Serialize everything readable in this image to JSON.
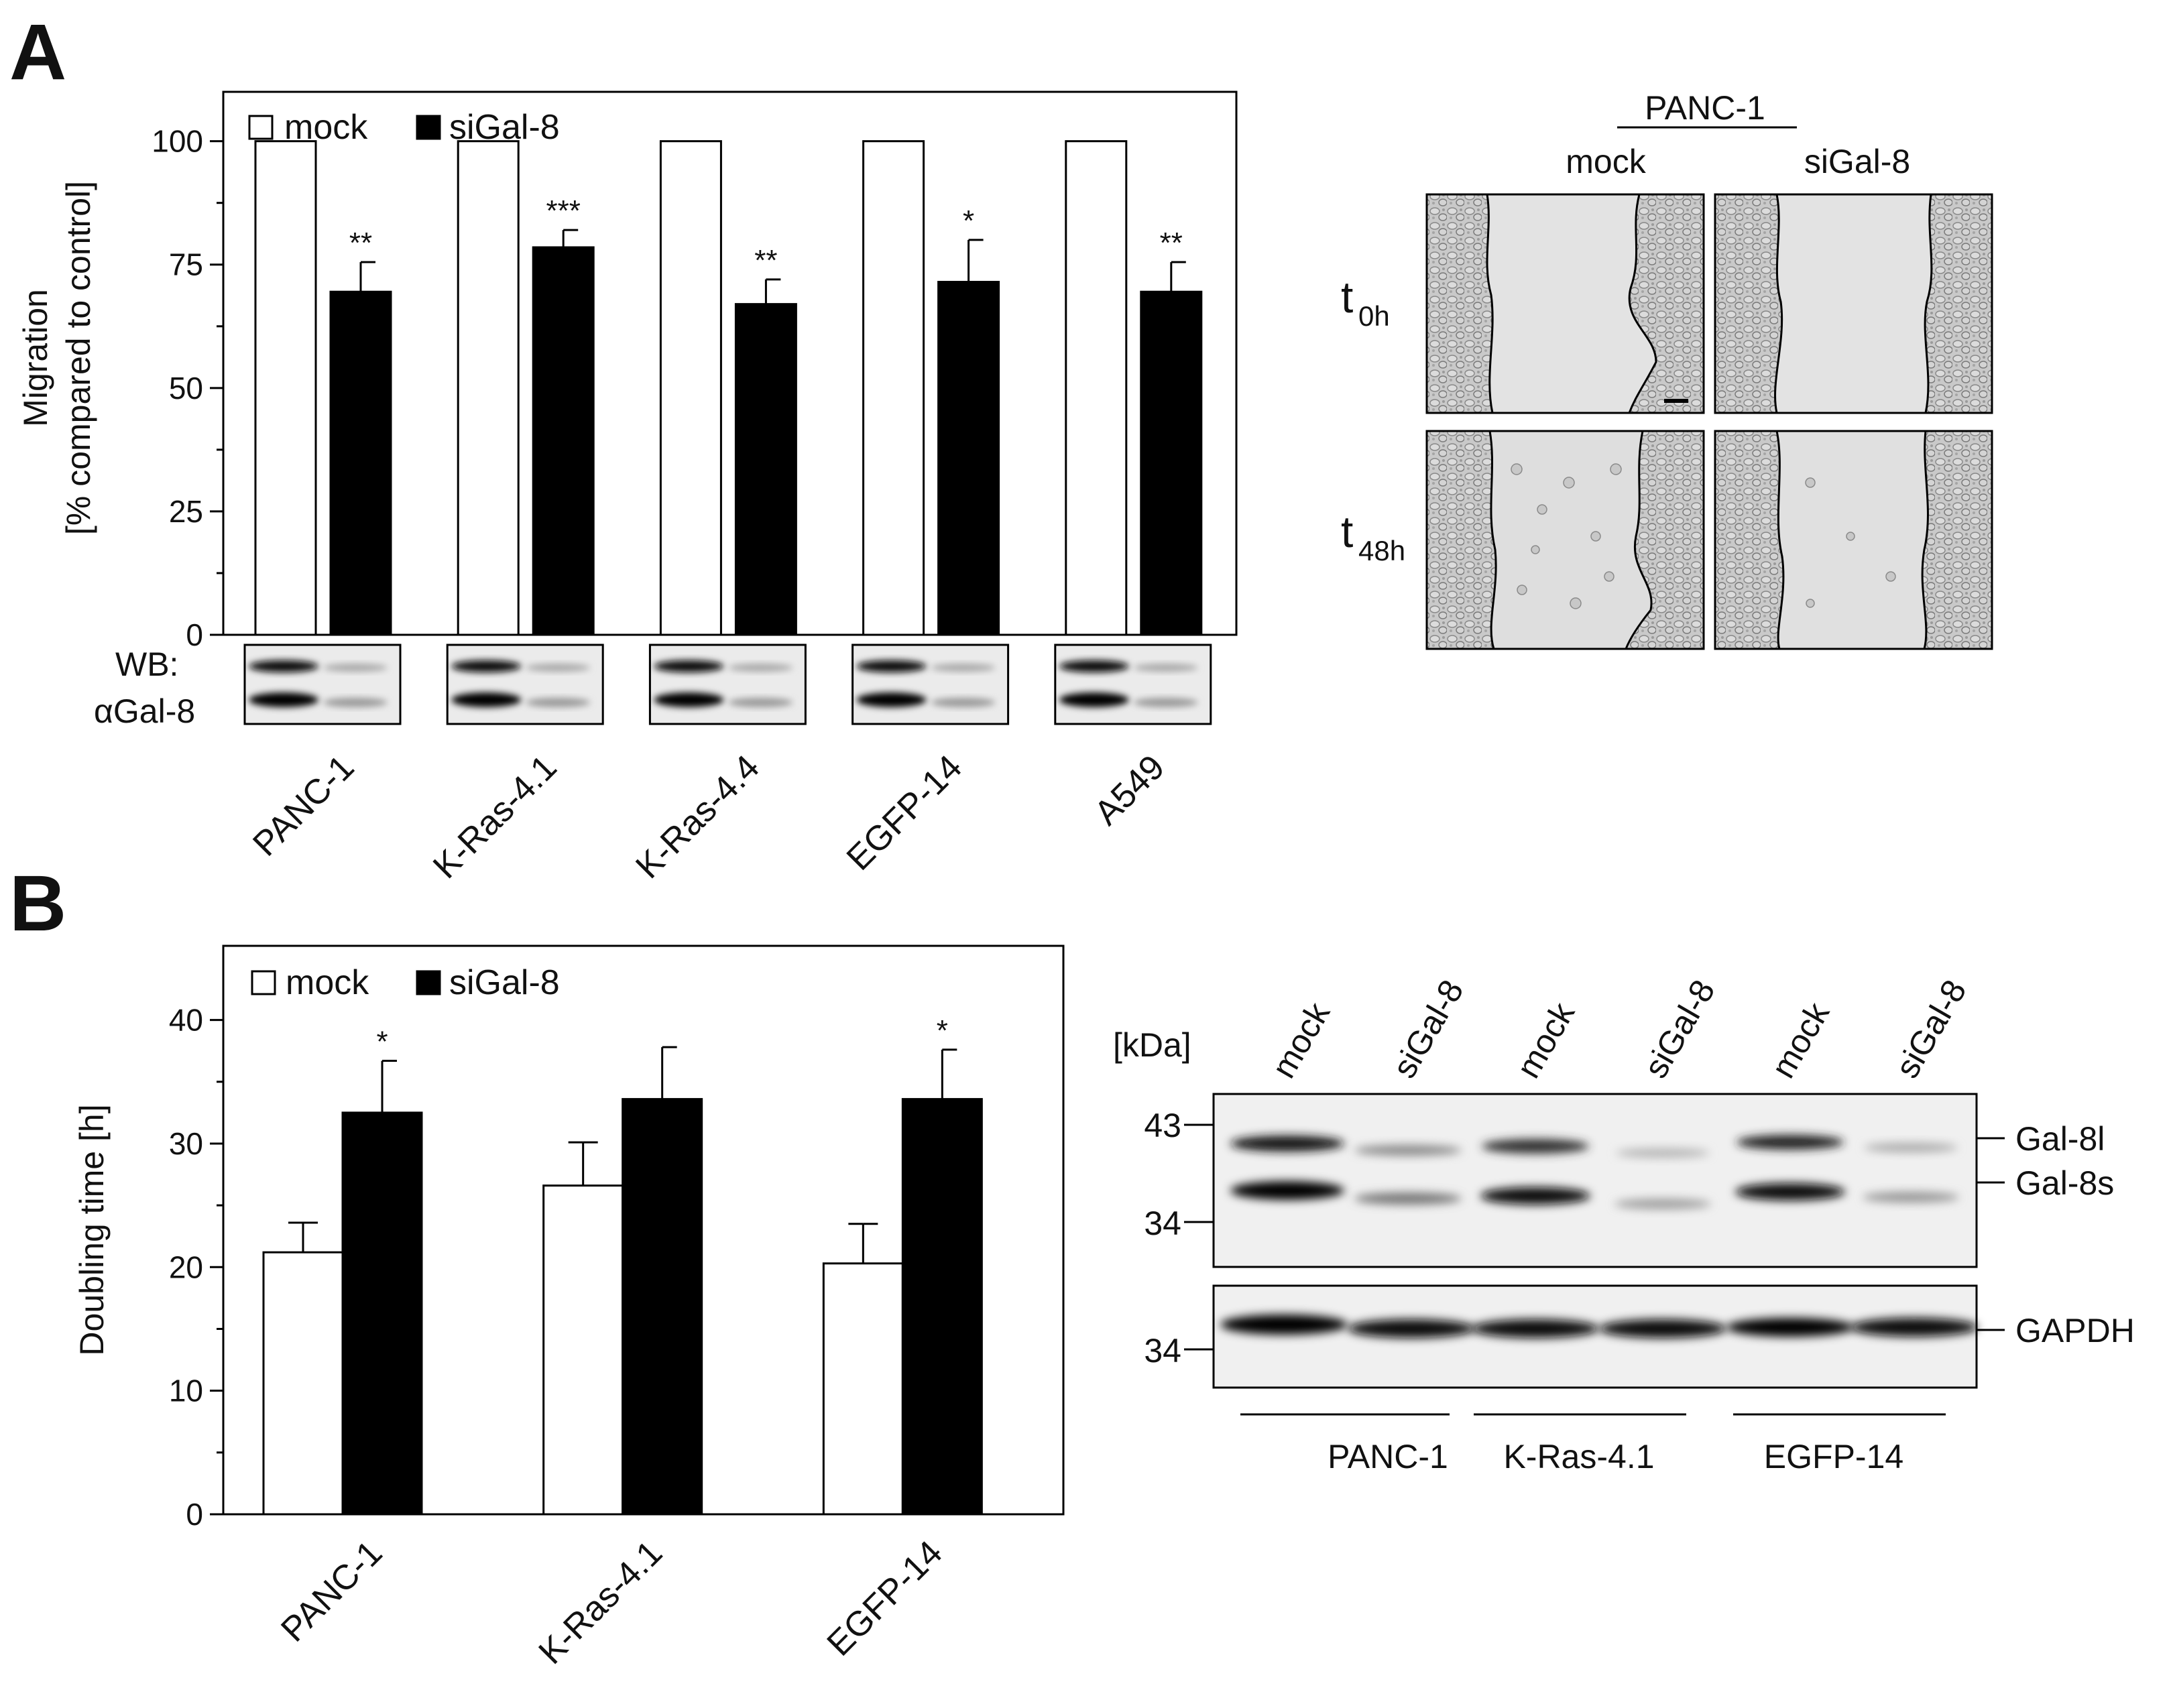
{
  "panels": {
    "a": {
      "letter": "A"
    },
    "b": {
      "letter": "B"
    }
  },
  "chart_data": [
    {
      "type": "bar",
      "ylabel": [
        "Migration",
        "[% compared to control]"
      ],
      "ylim": [
        0,
        110
      ],
      "yticks": [
        0,
        25,
        50,
        75,
        100
      ],
      "categories": [
        "PANC-1",
        "K-Ras-4.1",
        "K-Ras-4.4",
        "EGFP-14",
        "A549"
      ],
      "series": [
        {
          "name": "mock",
          "values": [
            100,
            100,
            100,
            100,
            100
          ],
          "errors": [
            0,
            0,
            0,
            0,
            0
          ],
          "color": "#ffffff"
        },
        {
          "name": "siGal-8",
          "values": [
            69.5,
            78.5,
            67,
            71.5,
            69.5
          ],
          "errors": [
            6,
            3.5,
            5,
            8.5,
            6
          ],
          "color": "#000000"
        }
      ],
      "significance": [
        "**",
        "***",
        "**",
        "*",
        "**"
      ],
      "legend_position": "top-left",
      "grid": false,
      "western_blot": {
        "label_line1": "WB:",
        "label_line2": "αGal-8"
      }
    },
    {
      "type": "bar",
      "ylabel": "Doubling time [h]",
      "ylim": [
        0,
        46
      ],
      "yticks": [
        0,
        10,
        20,
        30,
        40
      ],
      "categories": [
        "PANC-1",
        "K-Ras-4.1",
        "EGFP-14"
      ],
      "series": [
        {
          "name": "mock",
          "values": [
            21.2,
            26.6,
            20.3
          ],
          "errors": [
            2.4,
            3.5,
            3.2
          ],
          "color": "#ffffff"
        },
        {
          "name": "siGal-8",
          "values": [
            32.5,
            33.6,
            33.6
          ],
          "errors": [
            4.2,
            4.2,
            4.0
          ],
          "color": "#000000"
        }
      ],
      "significance": [
        "*",
        "",
        "*"
      ],
      "legend_position": "top-left",
      "grid": false
    }
  ],
  "scratch_assay": {
    "group": "PANC-1",
    "columns": [
      "mock",
      "siGal-8"
    ],
    "rows": [
      {
        "main": "t",
        "sub": "0h"
      },
      {
        "main": "t",
        "sub": "48h"
      }
    ]
  },
  "blot_b": {
    "unit": "[kDa]",
    "lanes": [
      "mock",
      "siGal-8",
      "mock",
      "siGal-8",
      "mock",
      "siGal-8"
    ],
    "markers_top": [
      "43",
      "34"
    ],
    "marker_bottom": "34",
    "bands_top": [
      "Gal-8l",
      "Gal-8s"
    ],
    "band_bottom": "GAPDH",
    "groups": [
      "PANC-1",
      "K-Ras-4.1",
      "EGFP-14"
    ]
  }
}
